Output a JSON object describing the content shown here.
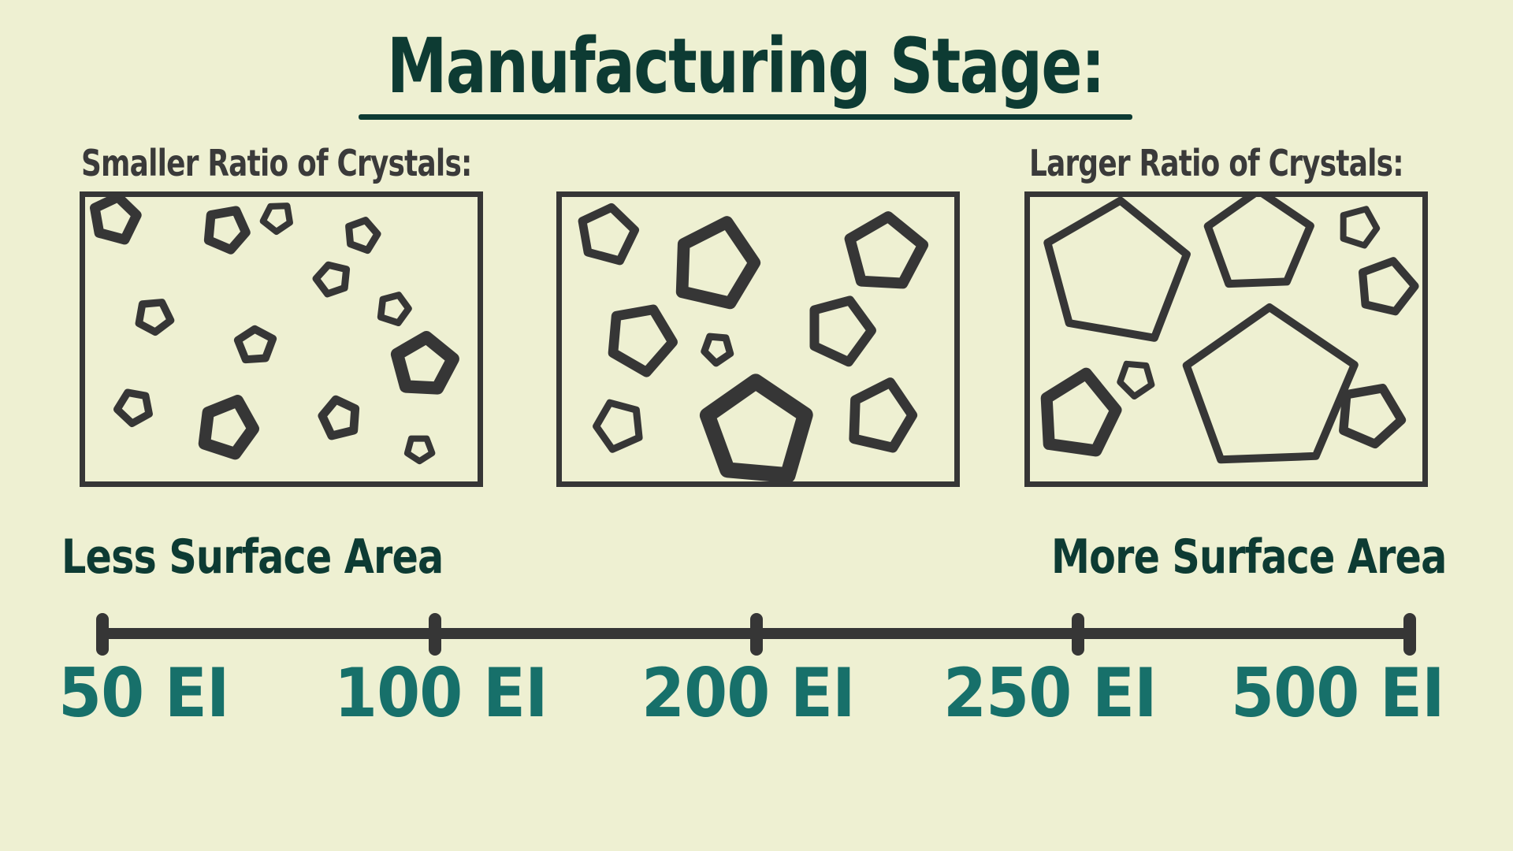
{
  "title": "Manufacturing Stage:",
  "labels": {
    "smaller": "Smaller Ratio of Crystals:",
    "larger": "Larger Ratio of Crystals:"
  },
  "surface": {
    "less": "Less Surface Area",
    "more": "More Surface Area"
  },
  "scale": {
    "ticks": [
      "50 EI",
      "100 EI",
      "200 EI",
      "250 EI",
      "500 EI"
    ]
  },
  "colors": {
    "background": "#eef0d2",
    "title": "#0d3b33",
    "crystal": "#363636",
    "tick_label": "#17706a"
  }
}
